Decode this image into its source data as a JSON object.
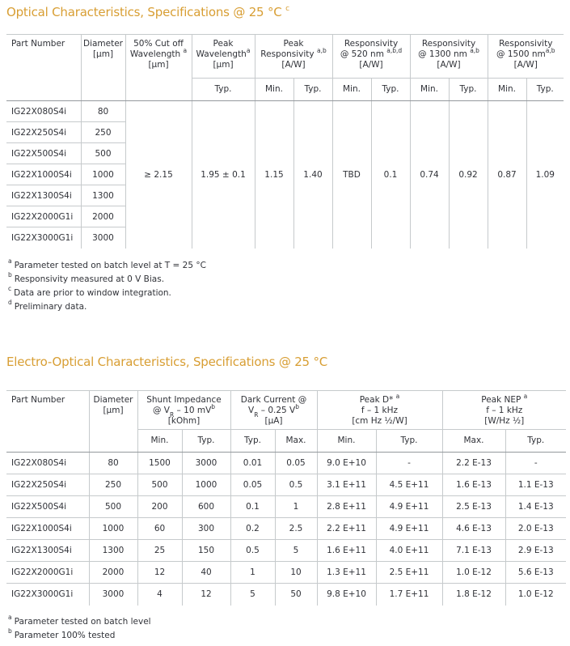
{
  "colors": {
    "accent": "#d89e33",
    "text": "#303238",
    "table_line": "#c6cacc",
    "header_separator": "#94999d"
  },
  "optical": {
    "title_lines": [
      [
        {
          "t": "Optical Characteristics, Specifications @ 25 °C "
        },
        {
          "t": "c",
          "s": "sup"
        }
      ]
    ],
    "header": {
      "part_number": "Part Number",
      "diameter": [
        [
          {
            "t": "Diameter"
          }
        ],
        [
          {
            "t": "[μm]"
          }
        ]
      ],
      "cutoff": [
        [
          {
            "t": "50% Cut off"
          }
        ],
        [
          {
            "t": "Wavelength "
          },
          {
            "t": "a",
            "s": "sup"
          }
        ],
        [
          {
            "t": "[μm]"
          }
        ]
      ],
      "peak_wavelength": [
        [
          {
            "t": "Peak"
          }
        ],
        [
          {
            "t": "Wavelength"
          },
          {
            "t": "a",
            "s": "sup"
          }
        ],
        [
          {
            "t": "[μm]"
          }
        ]
      ],
      "peak_responsivity": [
        [
          {
            "t": "Peak"
          }
        ],
        [
          {
            "t": "Responsivity "
          },
          {
            "t": "a,b",
            "s": "sup"
          }
        ],
        [
          {
            "t": "[A/W]"
          }
        ]
      ],
      "resp_520": [
        [
          {
            "t": "Responsivity"
          }
        ],
        [
          {
            "t": "@ 520 nm "
          },
          {
            "t": "a,b,d",
            "s": "sup"
          }
        ],
        [
          {
            "t": "[A/W]"
          }
        ]
      ],
      "resp_1300": [
        [
          {
            "t": "Responsivity"
          }
        ],
        [
          {
            "t": "@ 1300 nm "
          },
          {
            "t": "a,b",
            "s": "sup"
          }
        ],
        [
          {
            "t": "[A/W]"
          }
        ]
      ],
      "resp_1500": [
        [
          {
            "t": "Responsivity"
          }
        ],
        [
          {
            "t": "@ 1500 nm"
          },
          {
            "t": "a,b",
            "s": "sup"
          }
        ],
        [
          {
            "t": "[A/W]"
          }
        ]
      ]
    },
    "subheaders": [
      "Typ.",
      "Min.",
      "Typ.",
      "Min.",
      "Typ.",
      "Min.",
      "Typ.",
      "Min.",
      "Typ."
    ],
    "rows": [
      {
        "part": "IG22X080S4i",
        "diameter": "80"
      },
      {
        "part": "IG22X250S4i",
        "diameter": "250"
      },
      {
        "part": "IG22X500S4i",
        "diameter": "500"
      },
      {
        "part": "IG22X1000S4i",
        "diameter": "1000"
      },
      {
        "part": "IG22X1300S4i",
        "diameter": "1300"
      },
      {
        "part": "IG22X2000G1i",
        "diameter": "2000"
      },
      {
        "part": "IG22X3000G1i",
        "diameter": "3000"
      }
    ],
    "merged": {
      "cutoff": "≥ 2.15",
      "peak_wavelength_typ": "1.95 ± 0.1",
      "peak_resp_min": "1.15",
      "peak_resp_typ": "1.40",
      "resp_520_min": "TBD",
      "resp_520_typ": "0.1",
      "resp_1300_min": "0.74",
      "resp_1300_typ": "0.92",
      "resp_1500_min": "0.87",
      "resp_1500_typ": "1.09"
    },
    "footnotes": [
      {
        "sup": "a",
        "text": "Parameter tested on batch level at T = 25 °C"
      },
      {
        "sup": "b",
        "text": "Responsivity measured at 0 V Bias."
      },
      {
        "sup": "c",
        "text": "Data are prior to window integration."
      },
      {
        "sup": "d",
        "text": "Preliminary data."
      }
    ]
  },
  "electro": {
    "title": "Electro-Optical Characteristics, Specifications @ 25 °C",
    "header": {
      "part_number": "Part Number",
      "diameter": [
        [
          {
            "t": "Diameter"
          }
        ],
        [
          {
            "t": "[μm]"
          }
        ]
      ],
      "shunt": [
        [
          {
            "t": "Shunt Impedance"
          }
        ],
        [
          {
            "t": "@ V"
          },
          {
            "t": "R",
            "s": "sub"
          },
          {
            "t": " – 10 mV"
          },
          {
            "t": "b",
            "s": "sup"
          }
        ],
        [
          {
            "t": "[kOhm]"
          }
        ]
      ],
      "dark": [
        [
          {
            "t": "Dark Current @"
          }
        ],
        [
          {
            "t": "V"
          },
          {
            "t": "R",
            "s": "sub"
          },
          {
            "t": " – 0.25 V"
          },
          {
            "t": "b",
            "s": "sup"
          }
        ],
        [
          {
            "t": "[μA]"
          }
        ]
      ],
      "dstar": [
        [
          {
            "t": "Peak D* "
          },
          {
            "t": "a",
            "s": "sup"
          }
        ],
        [
          {
            "t": "f – 1 kHz"
          }
        ],
        [
          {
            "t": "[cm Hz ½/W]"
          }
        ]
      ],
      "nep": [
        [
          {
            "t": "Peak NEP "
          },
          {
            "t": "a",
            "s": "sup"
          }
        ],
        [
          {
            "t": "f – 1 kHz"
          }
        ],
        [
          {
            "t": "[W/Hz ½]"
          }
        ]
      ]
    },
    "subheaders": [
      "Min.",
      "Typ.",
      "Typ.",
      "Max.",
      "Min.",
      "Typ.",
      "Max.",
      "Typ."
    ],
    "rows": [
      {
        "part": "IG22X080S4i",
        "diameter": "80",
        "shunt_min": "1500",
        "shunt_typ": "3000",
        "dark_typ": "0.01",
        "dark_max": "0.05",
        "dstar_min": "9.0 E+10",
        "dstar_typ": "-",
        "nep_max": "2.2 E-13",
        "nep_typ": "-"
      },
      {
        "part": "IG22X250S4i",
        "diameter": "250",
        "shunt_min": "500",
        "shunt_typ": "1000",
        "dark_typ": "0.05",
        "dark_max": "0.5",
        "dstar_min": "3.1 E+11",
        "dstar_typ": "4.5 E+11",
        "nep_max": "1.6 E-13",
        "nep_typ": "1.1 E-13"
      },
      {
        "part": "IG22X500S4i",
        "diameter": "500",
        "shunt_min": "200",
        "shunt_typ": "600",
        "dark_typ": "0.1",
        "dark_max": "1",
        "dstar_min": "2.8 E+11",
        "dstar_typ": "4.9 E+11",
        "nep_max": "2.5 E-13",
        "nep_typ": "1.4 E-13"
      },
      {
        "part": "IG22X1000S4i",
        "diameter": "1000",
        "shunt_min": "60",
        "shunt_typ": "300",
        "dark_typ": "0.2",
        "dark_max": "2.5",
        "dstar_min": "2.2 E+11",
        "dstar_typ": "4.9 E+11",
        "nep_max": "4.6 E-13",
        "nep_typ": "2.0 E-13"
      },
      {
        "part": "IG22X1300S4i",
        "diameter": "1300",
        "shunt_min": "25",
        "shunt_typ": "150",
        "dark_typ": "0.5",
        "dark_max": "5",
        "dstar_min": "1.6 E+11",
        "dstar_typ": "4.0 E+11",
        "nep_max": "7.1 E-13",
        "nep_typ": "2.9 E-13"
      },
      {
        "part": "IG22X2000G1i",
        "diameter": "2000",
        "shunt_min": "12",
        "shunt_typ": "40",
        "dark_typ": "1",
        "dark_max": "10",
        "dstar_min": "1.3 E+11",
        "dstar_typ": "2.5 E+11",
        "nep_max": "1.0 E-12",
        "nep_typ": "5.6 E-13"
      },
      {
        "part": "IG22X3000G1i",
        "diameter": "3000",
        "shunt_min": "4",
        "shunt_typ": "12",
        "dark_typ": "5",
        "dark_max": "50",
        "dstar_min": "9.8 E+10",
        "dstar_typ": "1.7 E+11",
        "nep_max": "1.8 E-12",
        "nep_typ": "1.0 E-12"
      }
    ],
    "footnotes": [
      {
        "sup": "a",
        "text": "Parameter tested on batch level"
      },
      {
        "sup": "b",
        "text": "Parameter 100% tested"
      }
    ]
  }
}
